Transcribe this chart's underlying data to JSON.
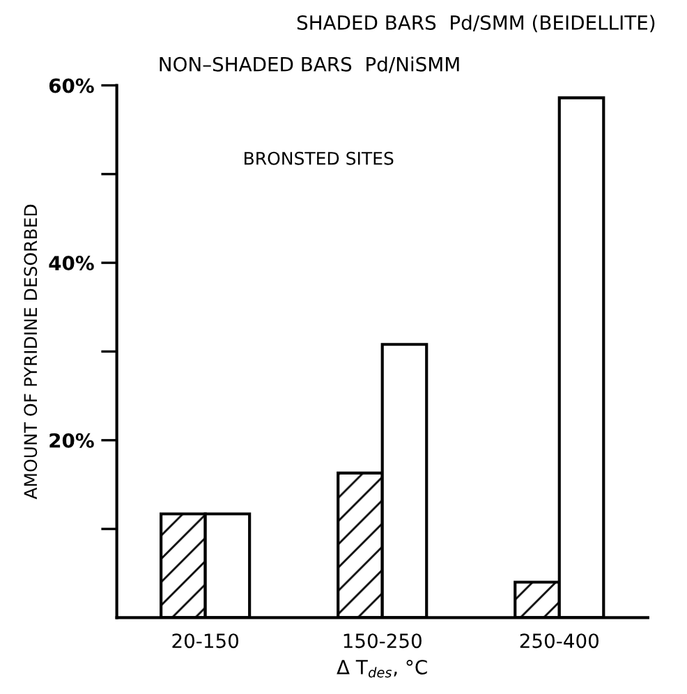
{
  "chart_data": {
    "type": "bar",
    "categories": [
      "20-150",
      "150-250",
      "250-400"
    ],
    "series": [
      {
        "color": "#000000",
        "values": [
          11.7,
          16.3,
          4.0
        ]
      },
      {
        "color": "#000000",
        "values": [
          11.7,
          30.8,
          58.6
        ]
      }
    ],
    "xlabel": "Δ T$_{des}$, °C",
    "ylabel": "AMOUNT OF PYRIDINE DESORBED",
    "annotations": [
      "SHADED BARS  Pd/SMM (BEIDELLITE)",
      "NON–SHADED BARS  Pd/NiSMM",
      "BRONSTED SITES"
    ],
    "ylim": [
      0,
      60
    ],
    "yticks": [
      {
        "value": 10,
        "label": null
      },
      {
        "value": 20,
        "label": "20%"
      },
      {
        "value": 30,
        "label": null
      },
      {
        "value": 40,
        "label": "40%"
      },
      {
        "value": 50,
        "label": null
      },
      {
        "value": 60,
        "label": "60%"
      }
    ],
    "grid": false,
    "legend": false
  }
}
